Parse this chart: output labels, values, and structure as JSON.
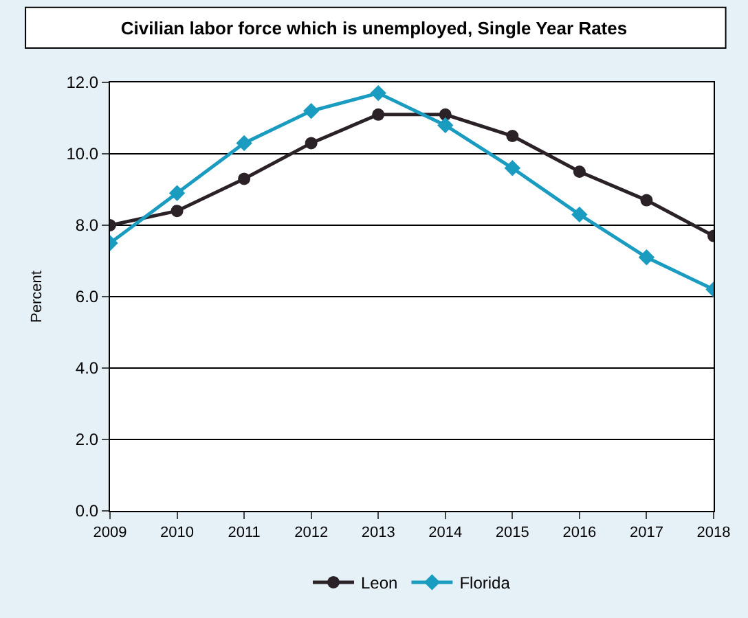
{
  "chart_data": {
    "type": "line",
    "title": "Civilian labor force which is unemployed, Single Year Rates",
    "ylabel": "Percent",
    "x": [
      2009,
      2010,
      2011,
      2012,
      2013,
      2014,
      2015,
      2016,
      2017,
      2018
    ],
    "xlim": [
      2009,
      2018
    ],
    "xticks": [
      2009,
      2010,
      2011,
      2012,
      2013,
      2014,
      2015,
      2016,
      2017,
      2018
    ],
    "ylim": [
      0,
      12
    ],
    "yticks": [
      {
        "value": 0,
        "label": "0.0"
      },
      {
        "value": 2,
        "label": "2.0"
      },
      {
        "value": 4,
        "label": "4.0"
      },
      {
        "value": 6,
        "label": "6.0"
      },
      {
        "value": 8,
        "label": "8.0"
      },
      {
        "value": 10,
        "label": "10.0"
      },
      {
        "value": 12,
        "label": "12.0"
      }
    ],
    "grid": "y",
    "legend": "bottom",
    "series": [
      {
        "name": "Leon",
        "color": "#2b2228",
        "marker": "circle",
        "values": [
          8.0,
          8.4,
          9.3,
          10.3,
          11.1,
          11.1,
          10.5,
          9.5,
          8.7,
          7.7
        ]
      },
      {
        "name": "Florida",
        "color": "#1a9bc0",
        "marker": "diamond",
        "values": [
          7.5,
          8.9,
          10.3,
          11.2,
          11.7,
          10.8,
          9.6,
          8.3,
          7.1,
          6.2
        ]
      }
    ]
  }
}
